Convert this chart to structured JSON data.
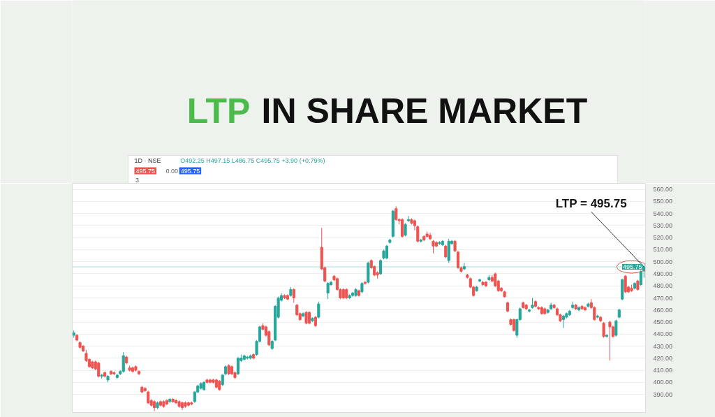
{
  "chart_data": {
    "type": "candlestick",
    "title": "LTP IN SHARE MARKET",
    "annotations": [
      "1D · NSE",
      "O492.25 H497.15 L486.75 C495.75 +3.90 (+0.79%)",
      "495.75",
      "0.00",
      "495.75",
      "3",
      "LTP = 495.75"
    ],
    "categories": [
      null,
      null,
      null,
      null,
      null,
      null,
      null,
      null,
      null,
      null,
      null,
      null,
      null,
      null,
      null,
      null,
      null,
      null,
      null,
      null,
      null,
      null,
      null,
      null,
      null,
      null,
      null,
      null,
      null,
      null,
      null,
      null,
      null,
      null,
      null,
      null,
      null,
      null,
      null,
      null,
      null,
      null,
      null,
      null,
      null,
      null,
      null,
      null,
      null,
      null,
      null,
      null,
      null,
      null,
      null,
      null,
      null,
      null,
      null,
      null,
      null,
      null,
      null,
      null,
      null,
      null,
      null,
      null,
      null,
      null,
      null,
      null,
      null,
      null,
      null,
      null,
      null,
      null,
      null,
      null,
      null,
      null,
      null,
      null,
      null,
      null,
      null,
      null,
      null,
      null,
      null,
      null,
      null,
      null,
      null,
      null,
      null,
      null,
      null,
      null,
      null,
      null,
      null,
      null,
      null,
      null,
      null,
      null,
      null,
      null,
      null,
      null,
      null,
      null,
      null,
      null,
      null,
      null,
      null,
      null,
      null,
      null,
      null,
      null,
      null,
      null,
      null,
      null,
      null,
      null,
      null,
      null,
      null,
      null,
      null,
      null,
      null,
      null,
      null,
      null,
      null,
      null,
      null,
      null,
      null,
      null,
      null,
      null,
      null,
      null,
      null,
      null,
      null,
      null,
      null,
      null,
      null,
      null,
      null,
      null,
      null,
      null,
      null,
      null,
      null,
      null,
      null,
      null,
      null,
      null,
      null,
      null,
      null,
      null,
      null,
      null,
      null,
      null,
      null,
      null,
      null,
      null,
      null,
      null,
      null
    ],
    "ohlc": [
      [
        439,
        443,
        437,
        441
      ],
      [
        439,
        440,
        434,
        435
      ],
      [
        433,
        434,
        428,
        429
      ],
      [
        430,
        431,
        425,
        426
      ],
      [
        424,
        427,
        417,
        418
      ],
      [
        419,
        420,
        412,
        413
      ],
      [
        417,
        418,
        411,
        412
      ],
      [
        417,
        418,
        410,
        411
      ],
      [
        416,
        417,
        404,
        405
      ],
      [
        405,
        407,
        403,
        406
      ],
      [
        408,
        409,
        404,
        405
      ],
      [
        402,
        406,
        400,
        405
      ],
      [
        409,
        410,
        406,
        407
      ],
      [
        408,
        409,
        406,
        407
      ],
      [
        404,
        407,
        403,
        406
      ],
      [
        407,
        410,
        406,
        409
      ],
      [
        409,
        425,
        408,
        422
      ],
      [
        421,
        422,
        415,
        416
      ],
      [
        412,
        414,
        409,
        410
      ],
      [
        412,
        413,
        408,
        409
      ],
      [
        413,
        414,
        409,
        410
      ],
      [
        409,
        410,
        406,
        407
      ],
      [
        396,
        397,
        391,
        392
      ],
      [
        395,
        396,
        392,
        393
      ],
      [
        392,
        393,
        382,
        383
      ],
      [
        385,
        386,
        380,
        381
      ],
      [
        384,
        385,
        376,
        379
      ],
      [
        379,
        384,
        378,
        383
      ],
      [
        384,
        385,
        380,
        381
      ],
      [
        384,
        385,
        379,
        380
      ],
      [
        385,
        386,
        381,
        382
      ],
      [
        384,
        387,
        383,
        386
      ],
      [
        386,
        387,
        383,
        384
      ],
      [
        385,
        386,
        382,
        383
      ],
      [
        384,
        385,
        379,
        380
      ],
      [
        383,
        384,
        377,
        379
      ],
      [
        383,
        384,
        379,
        380
      ],
      [
        383,
        384,
        380,
        381
      ],
      [
        383,
        384,
        381,
        382
      ],
      [
        384,
        393,
        383,
        392
      ],
      [
        392,
        398,
        391,
        397
      ],
      [
        395,
        400,
        394,
        399
      ],
      [
        394,
        401,
        393,
        400
      ],
      [
        402,
        403,
        399,
        400
      ],
      [
        402,
        403,
        399,
        400
      ],
      [
        402,
        403,
        399,
        400
      ],
      [
        402,
        403,
        395,
        396
      ],
      [
        401,
        402,
        393,
        394
      ],
      [
        398,
        407,
        397,
        406
      ],
      [
        407,
        414,
        406,
        413
      ],
      [
        414,
        415,
        406,
        407
      ],
      [
        413,
        414,
        406,
        407
      ],
      [
        408,
        409,
        403,
        404
      ],
      [
        407,
        421,
        406,
        420
      ],
      [
        418,
        423,
        417,
        420
      ],
      [
        419,
        423,
        418,
        422
      ],
      [
        420,
        422,
        419,
        421
      ],
      [
        420,
        423,
        419,
        422
      ],
      [
        423,
        424,
        419,
        420
      ],
      [
        423,
        435,
        422,
        434
      ],
      [
        434,
        447,
        433,
        446
      ],
      [
        447,
        449,
        443,
        444
      ],
      [
        446,
        447,
        438,
        439
      ],
      [
        442,
        443,
        430,
        431
      ],
      [
        428,
        435,
        427,
        434
      ],
      [
        435,
        464,
        434,
        463
      ],
      [
        454,
        471,
        453,
        470
      ],
      [
        468,
        474,
        467,
        472
      ],
      [
        472,
        473,
        469,
        470
      ],
      [
        472,
        473,
        468,
        469
      ],
      [
        472,
        479,
        471,
        477
      ],
      [
        477,
        478,
        466,
        470
      ],
      [
        464,
        465,
        455,
        456
      ],
      [
        457,
        458,
        451,
        452
      ],
      [
        455,
        458,
        454,
        457
      ],
      [
        458,
        459,
        448,
        449
      ],
      [
        458,
        459,
        448,
        449
      ],
      [
        451,
        454,
        450,
        453
      ],
      [
        454,
        455,
        446,
        447
      ],
      [
        454,
        467,
        453,
        465
      ],
      [
        512,
        528,
        493,
        494
      ],
      [
        495,
        496,
        483,
        484
      ],
      [
        474,
        483,
        469,
        482
      ],
      [
        481,
        484,
        480,
        483
      ],
      [
        488,
        489,
        484,
        485
      ],
      [
        486,
        487,
        476,
        477
      ],
      [
        477,
        478,
        469,
        470
      ],
      [
        477,
        478,
        469,
        470
      ],
      [
        477,
        478,
        469,
        470
      ],
      [
        470,
        473,
        469,
        472
      ],
      [
        472,
        475,
        471,
        474
      ],
      [
        472,
        478,
        471,
        477
      ],
      [
        476,
        477,
        471,
        472
      ],
      [
        475,
        483,
        474,
        482
      ],
      [
        483,
        484,
        481,
        482
      ],
      [
        483,
        500,
        482,
        499
      ],
      [
        501,
        502,
        494,
        495
      ],
      [
        496,
        497,
        488,
        489
      ],
      [
        491,
        492,
        486,
        489
      ],
      [
        490,
        502,
        489,
        501
      ],
      [
        503,
        510,
        502,
        509
      ],
      [
        503,
        514,
        502,
        513
      ],
      [
        516,
        519,
        515,
        518
      ],
      [
        521,
        543,
        520,
        542
      ],
      [
        544,
        546,
        534,
        535
      ],
      [
        535,
        536,
        531,
        534
      ],
      [
        535,
        536,
        520,
        521
      ],
      [
        522,
        532,
        521,
        531
      ],
      [
        534,
        538,
        533,
        535
      ],
      [
        535,
        536,
        531,
        532
      ],
      [
        534,
        535,
        526,
        530
      ],
      [
        529,
        530,
        516,
        517
      ],
      [
        517,
        519,
        516,
        518
      ],
      [
        521,
        522,
        517,
        518
      ],
      [
        523,
        525,
        520,
        521
      ],
      [
        522,
        524,
        518,
        519
      ],
      [
        517,
        518,
        507,
        513
      ],
      [
        516,
        517,
        512,
        513
      ],
      [
        515,
        517,
        514,
        516
      ],
      [
        514,
        518,
        513,
        517
      ],
      [
        513,
        514,
        503,
        504
      ],
      [
        501,
        519,
        499,
        517
      ],
      [
        515,
        518,
        514,
        517
      ],
      [
        517,
        518,
        508,
        509
      ],
      [
        508,
        509,
        494,
        495
      ],
      [
        495,
        496,
        491,
        492
      ],
      [
        494,
        499,
        493,
        496
      ],
      [
        489,
        490,
        486,
        487
      ],
      [
        486,
        487,
        478,
        479
      ],
      [
        479,
        480,
        471,
        472
      ],
      [
        476,
        480,
        475,
        479
      ],
      [
        484,
        486,
        483,
        485
      ],
      [
        483,
        484,
        480,
        481
      ],
      [
        483,
        484,
        479,
        480
      ],
      [
        485,
        489,
        484,
        487
      ],
      [
        487,
        489,
        483,
        484
      ],
      [
        490,
        491,
        479,
        480
      ],
      [
        484,
        485,
        475,
        476
      ],
      [
        478,
        479,
        475,
        476
      ],
      [
        475,
        476,
        470,
        471
      ],
      [
        466,
        467,
        458,
        459
      ],
      [
        452,
        453,
        447,
        448
      ],
      [
        452,
        453,
        442,
        443
      ],
      [
        439,
        453,
        437,
        452
      ],
      [
        452,
        462,
        451,
        461
      ],
      [
        466,
        467,
        461,
        462
      ],
      [
        464,
        465,
        460,
        461
      ],
      [
        459,
        461,
        458,
        460
      ],
      [
        462,
        470,
        461,
        464
      ],
      [
        467,
        468,
        462,
        463
      ],
      [
        462,
        463,
        460,
        461
      ],
      [
        462,
        463,
        456,
        457
      ],
      [
        461,
        462,
        456,
        457
      ],
      [
        458,
        461,
        457,
        460
      ],
      [
        461,
        466,
        460,
        464
      ],
      [
        464,
        465,
        461,
        462
      ],
      [
        461,
        462,
        455,
        456
      ],
      [
        456,
        457,
        450,
        451
      ],
      [
        452,
        456,
        445,
        455
      ],
      [
        454,
        458,
        453,
        457
      ],
      [
        456,
        460,
        455,
        459
      ],
      [
        462,
        467,
        461,
        464
      ],
      [
        464,
        465,
        460,
        461
      ],
      [
        460,
        463,
        459,
        462
      ],
      [
        463,
        464,
        460,
        461
      ],
      [
        462,
        463,
        459,
        460
      ],
      [
        463,
        466,
        462,
        465
      ],
      [
        466,
        469,
        461,
        462
      ],
      [
        462,
        463,
        451,
        452
      ],
      [
        454,
        456,
        453,
        455
      ],
      [
        454,
        455,
        450,
        451
      ],
      [
        449,
        450,
        437,
        438
      ],
      [
        438,
        440,
        437,
        439
      ],
      [
        450,
        451,
        418,
        446
      ],
      [
        446,
        447,
        437,
        438
      ],
      [
        439,
        452,
        438,
        451
      ],
      [
        454,
        461,
        453,
        460
      ],
      [
        469,
        486,
        468,
        485
      ],
      [
        488,
        489,
        474,
        475
      ],
      [
        479,
        480,
        474,
        475
      ],
      [
        478,
        481,
        475,
        476
      ],
      [
        478,
        483,
        477,
        482
      ],
      [
        484,
        485,
        476,
        477
      ],
      [
        481,
        493,
        480,
        492
      ],
      [
        492.25,
        497.15,
        486.75,
        495.75
      ]
    ],
    "ylim": [
      375,
      565
    ],
    "yticks": [
      {
        "value": 390,
        "label": "390.00"
      },
      {
        "value": 400,
        "label": "400.00"
      },
      {
        "value": 410,
        "label": "410.00"
      },
      {
        "value": 420,
        "label": "420.00"
      },
      {
        "value": 430,
        "label": "430.00"
      },
      {
        "value": 440,
        "label": "440.00"
      },
      {
        "value": 450,
        "label": "450.00"
      },
      {
        "value": 460,
        "label": "460.00"
      },
      {
        "value": 470,
        "label": "470.00"
      },
      {
        "value": 480,
        "label": "480.00"
      },
      {
        "value": 490,
        "label": "490.00"
      },
      {
        "value": 500,
        "label": "500.00"
      },
      {
        "value": 510,
        "label": "510.00"
      },
      {
        "value": 520,
        "label": "520.00"
      },
      {
        "value": 530,
        "label": "530.00"
      },
      {
        "value": 540,
        "label": "540.00"
      },
      {
        "value": 550,
        "label": "550.00"
      },
      {
        "value": 560,
        "label": "560.00"
      }
    ],
    "ref_lines": [
      {
        "axis": "y",
        "value": 495.75,
        "label": "495.75",
        "color": "#26a69a"
      }
    ],
    "grid": "y",
    "tick_labels": "y"
  }
}
